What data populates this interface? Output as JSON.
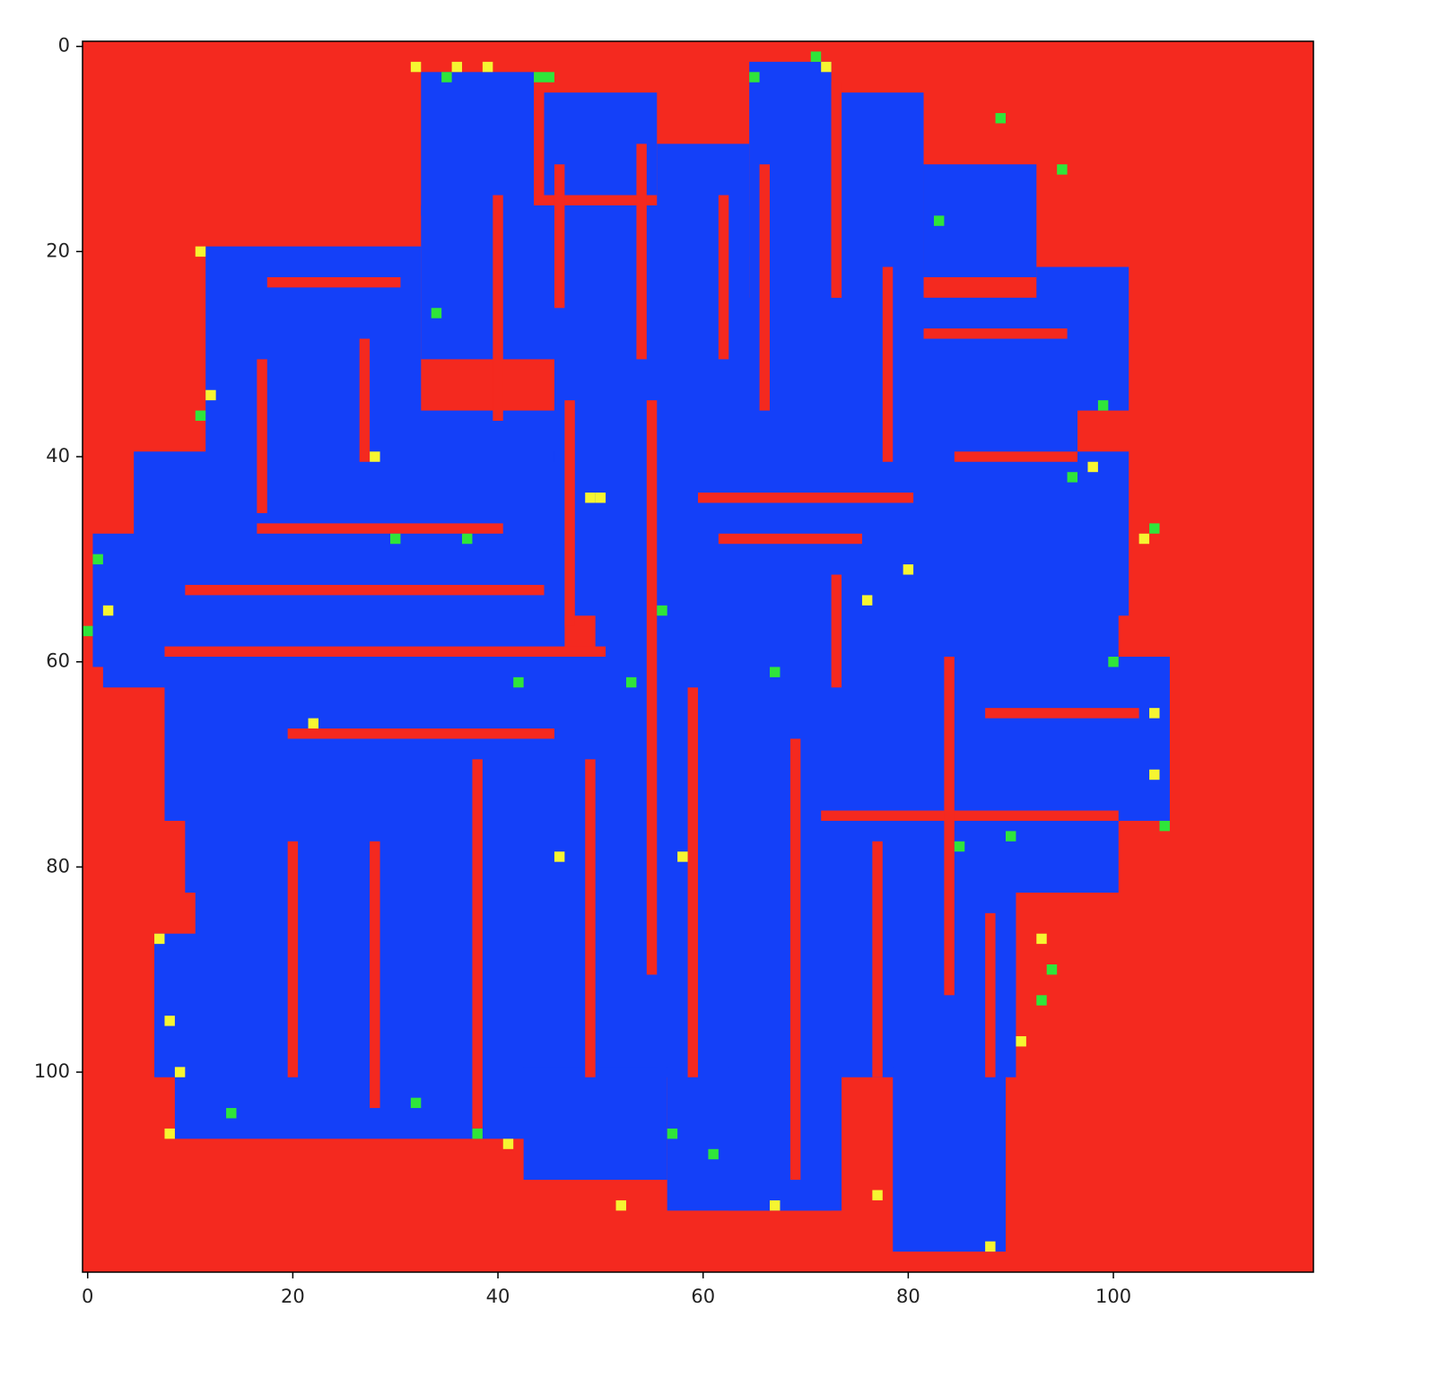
{
  "chart_data": {
    "type": "image",
    "xlim": [
      -0.5,
      119.5
    ],
    "ylim": [
      119.5,
      -0.5
    ],
    "xticks": [
      0,
      20,
      40,
      60,
      80,
      100
    ],
    "yticks": [
      0,
      20,
      40,
      60,
      80,
      100
    ],
    "background": "#f4291f",
    "layers": [
      {
        "color": "#1440f8",
        "rects": [
          [
            33,
            3,
            43,
            16
          ],
          [
            45,
            5,
            55,
            14
          ],
          [
            56,
            10,
            64,
            20
          ],
          [
            65,
            2,
            72,
            25
          ],
          [
            74,
            5,
            81,
            25
          ],
          [
            82,
            12,
            92,
            22
          ],
          [
            33,
            16,
            64,
            30
          ],
          [
            12,
            20,
            32,
            36
          ],
          [
            5,
            40,
            12,
            48
          ],
          [
            1,
            48,
            46,
            60
          ],
          [
            12,
            36,
            50,
            48
          ],
          [
            46,
            25,
            96,
            40
          ],
          [
            46,
            40,
            101,
            55
          ],
          [
            50,
            55,
            100,
            66
          ],
          [
            8,
            60,
            105,
            75
          ],
          [
            10,
            75,
            100,
            82
          ],
          [
            11,
            80,
            90,
            92
          ],
          [
            7,
            87,
            90,
            100
          ],
          [
            9,
            100,
            55,
            106
          ],
          [
            43,
            100,
            56,
            110
          ],
          [
            57,
            98,
            73,
            113
          ],
          [
            79,
            100,
            89,
            117
          ],
          [
            93,
            22,
            101,
            35
          ],
          [
            2,
            59,
            8,
            62
          ],
          [
            63,
            100,
            72,
            113
          ]
        ]
      },
      {
        "color": "#f4291f",
        "rects": [
          [
            10,
            53,
            44,
            53
          ],
          [
            8,
            59,
            50,
            59
          ],
          [
            17,
            47,
            40,
            47
          ],
          [
            47,
            35,
            47,
            56
          ],
          [
            55,
            35,
            55,
            90
          ],
          [
            66,
            12,
            66,
            35
          ],
          [
            73,
            4,
            73,
            24
          ],
          [
            62,
            48,
            75,
            48
          ],
          [
            73,
            52,
            73,
            62
          ],
          [
            60,
            44,
            80,
            44
          ],
          [
            85,
            40,
            96,
            40
          ],
          [
            72,
            75,
            100,
            75
          ],
          [
            59,
            63,
            59,
            100
          ],
          [
            49,
            70,
            49,
            100
          ],
          [
            38,
            70,
            38,
            105
          ],
          [
            28,
            78,
            28,
            103
          ],
          [
            20,
            78,
            20,
            100
          ],
          [
            20,
            67,
            45,
            67
          ],
          [
            69,
            68,
            69,
            110
          ],
          [
            77,
            78,
            77,
            100
          ],
          [
            84,
            60,
            84,
            92
          ],
          [
            18,
            23,
            30,
            23
          ],
          [
            17,
            31,
            17,
            45
          ],
          [
            27,
            29,
            27,
            40
          ],
          [
            40,
            15,
            40,
            36
          ],
          [
            46,
            12,
            46,
            25
          ],
          [
            54,
            10,
            54,
            30
          ],
          [
            62,
            15,
            62,
            30
          ],
          [
            78,
            22,
            78,
            40
          ],
          [
            82,
            28,
            95,
            28
          ],
          [
            88,
            65,
            102,
            65
          ],
          [
            88,
            85,
            88,
            100
          ]
        ]
      },
      {
        "color": "#f6f531",
        "cells": [
          [
            32,
            2
          ],
          [
            36,
            2
          ],
          [
            39,
            2
          ],
          [
            49,
            44
          ],
          [
            50,
            44
          ],
          [
            72,
            2
          ],
          [
            11,
            20
          ],
          [
            12,
            34
          ],
          [
            98,
            41
          ],
          [
            103,
            48
          ],
          [
            104,
            65
          ],
          [
            104,
            71
          ],
          [
            2,
            55
          ],
          [
            8,
            95
          ],
          [
            8,
            106
          ],
          [
            9,
            100
          ],
          [
            41,
            107
          ],
          [
            52,
            113
          ],
          [
            88,
            117
          ],
          [
            77,
            112
          ],
          [
            67,
            113
          ],
          [
            58,
            79
          ],
          [
            46,
            79
          ],
          [
            28,
            40
          ],
          [
            93,
            87
          ],
          [
            7,
            87
          ],
          [
            91,
            97
          ],
          [
            76,
            54
          ],
          [
            80,
            51
          ],
          [
            22,
            66
          ]
        ]
      },
      {
        "color": "#2fe53a",
        "cells": [
          [
            35,
            3
          ],
          [
            44,
            3
          ],
          [
            71,
            1
          ],
          [
            89,
            7
          ],
          [
            96,
            42
          ],
          [
            100,
            60
          ],
          [
            104,
            47
          ],
          [
            105,
            76
          ],
          [
            0,
            57
          ],
          [
            1,
            50
          ],
          [
            45,
            3
          ],
          [
            65,
            3
          ],
          [
            83,
            17
          ],
          [
            95,
            12
          ],
          [
            99,
            35
          ],
          [
            34,
            26
          ],
          [
            30,
            48
          ],
          [
            37,
            48
          ],
          [
            67,
            61
          ],
          [
            85,
            78
          ],
          [
            93,
            93
          ],
          [
            94,
            90
          ],
          [
            42,
            62
          ],
          [
            53,
            62
          ],
          [
            14,
            104
          ],
          [
            32,
            103
          ],
          [
            38,
            106
          ],
          [
            57,
            106
          ],
          [
            61,
            108
          ],
          [
            90,
            77
          ],
          [
            56,
            55
          ],
          [
            11,
            36
          ]
        ]
      }
    ]
  }
}
